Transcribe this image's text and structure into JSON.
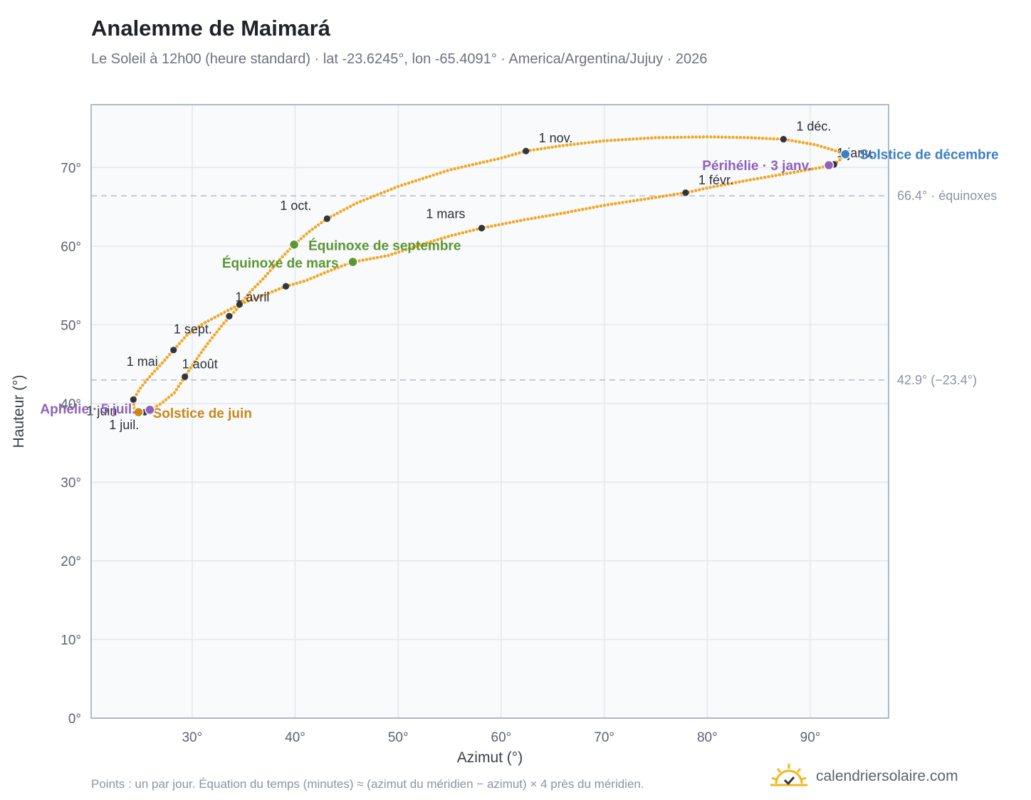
{
  "title": "Analemme de Maimará",
  "subtitle": "Le Soleil à 12h00 (heure standard) · lat -23.6245°, lon -65.4091° · America/Argentina/Jujuy · 2026",
  "footnote": "Points : un par jour. Équation du temps (minutes) ≈ (azimut du méridien − azimut) × 4 près du méridien.",
  "brand": {
    "name": "calendriersolaire.com",
    "icon": "sun-logo-icon"
  },
  "colors": {
    "curve": "#f2a623",
    "month_marker": "#2f3640",
    "equinox": "#5c9632",
    "june_solstice": "#c8891a",
    "december_solstice": "#3b7fc4",
    "apsis": "#8f62b8",
    "reference_line": "#b9c2cc",
    "plot_background": "#f8fafc",
    "grid": "#e3e8ee",
    "frame": "#9aa5b1"
  },
  "chart_data": {
    "type": "scatter",
    "xlabel": "Azimut (°)",
    "ylabel": "Hauteur (°)",
    "xlim": [
      20.2,
      97.6
    ],
    "ylim": [
      0,
      78
    ],
    "x_ticks": [
      "30°",
      "40°",
      "50°",
      "60°",
      "70°",
      "80°",
      "90°"
    ],
    "x_tick_values": [
      30,
      40,
      50,
      60,
      70,
      80,
      90
    ],
    "y_ticks": [
      "0°",
      "10°",
      "20°",
      "30°",
      "40°",
      "50°",
      "60°",
      "70°"
    ],
    "y_tick_values": [
      0,
      10,
      20,
      30,
      40,
      50,
      60,
      70
    ],
    "grid": true,
    "curve_points": [
      [
        92.3,
        70.4
      ],
      [
        91.0,
        70.0
      ],
      [
        88.0,
        69.3
      ],
      [
        84.0,
        68.4
      ],
      [
        80.0,
        67.4
      ],
      [
        77.9,
        66.8
      ],
      [
        74.0,
        66.0
      ],
      [
        70.0,
        65.2
      ],
      [
        66.0,
        64.2
      ],
      [
        62.0,
        63.3
      ],
      [
        58.1,
        62.3
      ],
      [
        55.0,
        61.3
      ],
      [
        52.0,
        60.1
      ],
      [
        49.0,
        58.8
      ],
      [
        45.6,
        58.0
      ],
      [
        43.0,
        56.7
      ],
      [
        41.0,
        55.6
      ],
      [
        39.1,
        54.9
      ],
      [
        37.0,
        53.8
      ],
      [
        34.6,
        52.6
      ],
      [
        33.0,
        51.5
      ],
      [
        31.0,
        50.1
      ],
      [
        29.5,
        48.7
      ],
      [
        28.2,
        46.8
      ],
      [
        27.0,
        45.0
      ],
      [
        26.0,
        43.6
      ],
      [
        25.0,
        42.0
      ],
      [
        24.3,
        40.5
      ],
      [
        24.4,
        39.3
      ],
      [
        24.8,
        38.9
      ],
      [
        25.2,
        38.8
      ],
      [
        25.9,
        39.2
      ],
      [
        27.0,
        40.0
      ],
      [
        28.3,
        41.4
      ],
      [
        29.3,
        43.4
      ],
      [
        30.2,
        45.2
      ],
      [
        31.5,
        47.6
      ],
      [
        33.0,
        50.1
      ],
      [
        34.4,
        52.1
      ],
      [
        35.5,
        54.0
      ],
      [
        37.0,
        56.0
      ],
      [
        38.5,
        58.3
      ],
      [
        39.9,
        60.2
      ],
      [
        41.5,
        62.0
      ],
      [
        43.1,
        63.5
      ],
      [
        46.0,
        65.5
      ],
      [
        50.0,
        67.6
      ],
      [
        55.0,
        69.7
      ],
      [
        60.0,
        71.2
      ],
      [
        62.4,
        72.1
      ],
      [
        66.0,
        72.8
      ],
      [
        70.0,
        73.4
      ],
      [
        75.0,
        73.8
      ],
      [
        80.0,
        73.9
      ],
      [
        84.0,
        73.8
      ],
      [
        87.4,
        73.6
      ],
      [
        90.5,
        72.9
      ],
      [
        92.3,
        72.2
      ],
      [
        93.4,
        71.7
      ],
      [
        93.0,
        71.1
      ],
      [
        92.3,
        70.4
      ]
    ],
    "month_markers": [
      {
        "label": "1 janv.",
        "x": 92.3,
        "y": 70.4
      },
      {
        "label": "1 févr.",
        "x": 77.9,
        "y": 66.8
      },
      {
        "label": "1 mars",
        "x": 58.1,
        "y": 62.3
      },
      {
        "label": "1 avril",
        "x": 34.6,
        "y": 52.6
      },
      {
        "label": "1 mai",
        "x": 28.2,
        "y": 46.8
      },
      {
        "label": "1 juin",
        "x": 24.3,
        "y": 40.5
      },
      {
        "label": "1 juil.",
        "x": 25.4,
        "y": 38.9
      },
      {
        "label": "1 août",
        "x": 29.3,
        "y": 43.4
      },
      {
        "label": "1 sept.",
        "x": 33.6,
        "y": 51.1
      },
      {
        "label": "1 oct.",
        "x": 43.1,
        "y": 63.5
      },
      {
        "label": "1 nov.",
        "x": 62.4,
        "y": 72.1
      },
      {
        "label": "1 déc.",
        "x": 87.4,
        "y": 73.6
      },
      {
        "label": "",
        "x": 39.1,
        "y": 54.9
      }
    ],
    "events": [
      {
        "label": "Solstice de décembre",
        "x": 93.4,
        "y": 71.7,
        "color_key": "december_solstice"
      },
      {
        "label": "Périhélie · 3 janv.",
        "x": 91.8,
        "y": 70.3,
        "color_key": "apsis"
      },
      {
        "label": "Équinoxe de septembre",
        "x": 39.9,
        "y": 60.2,
        "color_key": "equinox"
      },
      {
        "label": "Équinoxe de mars",
        "x": 45.6,
        "y": 58.0,
        "color_key": "equinox"
      },
      {
        "label": "Solstice de juin",
        "x": 24.8,
        "y": 38.9,
        "color_key": "june_solstice"
      },
      {
        "label": "Aphélie · 5 juil.",
        "x": 25.9,
        "y": 39.2,
        "color_key": "apsis"
      }
    ],
    "reference_lines": [
      {
        "y": 66.4,
        "label": "66.4° · équinoxes"
      },
      {
        "y": 43.0,
        "label": "42.9° (−23.4°)"
      }
    ]
  }
}
